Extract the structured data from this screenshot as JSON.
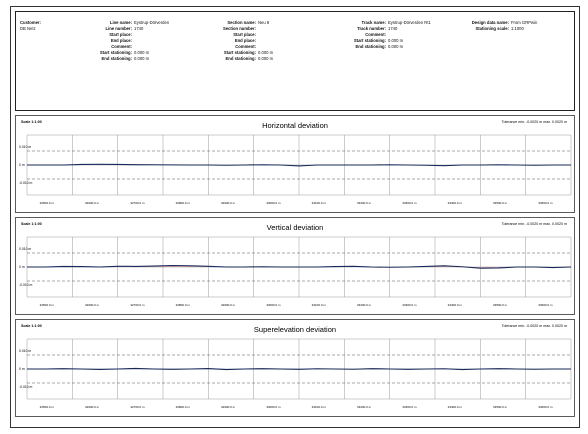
{
  "header": {
    "customer_label": "Customer:",
    "customer_value": "DB Netz",
    "line": [
      {
        "k": "Line name:",
        "v": "Eystrup-Dörverden"
      },
      {
        "k": "Line number:",
        "v": "1740"
      },
      {
        "k": "Start place:",
        "v": ""
      },
      {
        "k": "End place:",
        "v": ""
      },
      {
        "k": "Comment:",
        "v": ""
      },
      {
        "k": "Start stationing:",
        "v": "0.000 m"
      },
      {
        "k": "End stationing:",
        "v": "0.000 m"
      }
    ],
    "section": [
      {
        "k": "Section name:",
        "v": "Neu 8"
      },
      {
        "k": "Section number:",
        "v": ""
      },
      {
        "k": "Start place:",
        "v": ""
      },
      {
        "k": "End place:",
        "v": ""
      },
      {
        "k": "Comment:",
        "v": ""
      },
      {
        "k": "Start stationing:",
        "v": "0.000 m"
      },
      {
        "k": "End stationing:",
        "v": "0.000 m"
      }
    ],
    "track": [
      {
        "k": "Track name:",
        "v": "Eystrup-Dörverden Rt1"
      },
      {
        "k": "Track number:",
        "v": "1740"
      },
      {
        "k": "Comment:",
        "v": ""
      },
      {
        "k": "Start stationing:",
        "v": "0.000 m"
      },
      {
        "k": "End stationing:",
        "v": "0.000 m"
      }
    ],
    "design": [
      {
        "k": "Design data name:",
        "v": "From GRPwin"
      },
      {
        "k": "Stationing scale:",
        "v": "1:1000"
      }
    ]
  },
  "panels": [
    {
      "title": "Horizontal deviation",
      "scale": "Scale 1:1:00",
      "tolerance": "Tolerance min. -0.0020 m  max. 0.0020 m",
      "yticks": [
        "0.010 m",
        "0 m",
        "-0.010 m"
      ],
      "series": [
        0,
        0,
        0,
        0.05,
        0.06,
        0.05,
        0.03,
        0.02,
        0.01,
        0,
        0,
        -0.02,
        0,
        0.02,
        0,
        -0.08,
        0,
        0,
        0,
        0,
        0.02,
        0,
        -0.02,
        -0.06,
        0,
        0,
        0.02,
        0,
        -0.02,
        0,
        0
      ]
    },
    {
      "title": "Vertical deviation",
      "scale": "Scale 1:1:00",
      "tolerance": "Tolerance min. -0.0020 m  max. 0.0020 m",
      "yticks": [
        "0.010 m",
        "0 m",
        "-0.010 m"
      ],
      "series": [
        0,
        0,
        0.05,
        0.04,
        0,
        0.06,
        0.05,
        0.08,
        0.12,
        0.1,
        0.06,
        0,
        0,
        0.02,
        0,
        0,
        0,
        0.04,
        0.06,
        0,
        -0.02,
        0,
        0.05,
        0.1,
        0.02,
        -0.1,
        -0.08,
        0,
        0,
        -0.05,
        0
      ]
    },
    {
      "title": "Superelevation deviation",
      "scale": "Scale 1:1:00",
      "tolerance": "Tolerance min. -0.0020 m  max. 0.0020 m",
      "yticks": [
        "0.010 m",
        "0 m",
        "-0.010 m"
      ],
      "series": [
        0,
        0,
        0.03,
        0,
        -0.04,
        0,
        0.05,
        0,
        -0.03,
        0,
        0.04,
        -0.05,
        0,
        0.03,
        0,
        -0.03,
        0.02,
        0,
        -0.02,
        0.03,
        0,
        -0.03,
        0,
        0.02,
        -0.05,
        0,
        0.03,
        0,
        -0.02,
        0,
        0
      ]
    }
  ],
  "xticks": [
    "32500.0 m",
    "32600.0 m",
    "32700.0 m",
    "32800.0 m",
    "32900.0 m",
    "33000.0 m",
    "33100.0 m",
    "33200.0 m",
    "33300.0 m",
    "33400.0 m",
    "33500.0 m",
    "33600.0 m"
  ]
}
